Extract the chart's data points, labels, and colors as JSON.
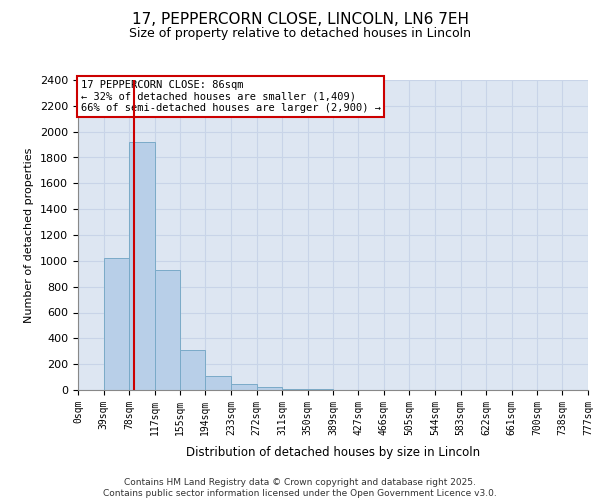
{
  "title_line1": "17, PEPPERCORN CLOSE, LINCOLN, LN6 7EH",
  "title_line2": "Size of property relative to detached houses in Lincoln",
  "xlabel": "Distribution of detached houses by size in Lincoln",
  "ylabel": "Number of detached properties",
  "bar_bins": [
    0,
    39,
    78,
    117,
    155,
    194,
    233,
    272,
    311,
    350,
    389,
    427,
    466,
    505,
    544,
    583,
    622,
    661,
    700,
    738,
    777
  ],
  "bar_heights": [
    0,
    1025,
    1920,
    930,
    310,
    105,
    45,
    25,
    10,
    5,
    3,
    2,
    1,
    1,
    1,
    0,
    0,
    0,
    0,
    0
  ],
  "bar_color": "#b8cfe8",
  "bar_edge_color": "#7aaac8",
  "grid_color": "#c8d4e8",
  "bg_color": "#dde6f2",
  "property_size": 86,
  "property_label": "17 PEPPERCORN CLOSE: 86sqm",
  "annotation_line1": "← 32% of detached houses are smaller (1,409)",
  "annotation_line2": "66% of semi-detached houses are larger (2,900) →",
  "red_line_color": "#cc0000",
  "annotation_box_color": "#ffffff",
  "annotation_box_edge": "#cc0000",
  "ylim": [
    0,
    2400
  ],
  "ytick_step": 200,
  "footnote_line1": "Contains HM Land Registry data © Crown copyright and database right 2025.",
  "footnote_line2": "Contains public sector information licensed under the Open Government Licence v3.0.",
  "tick_labels": [
    "0sqm",
    "39sqm",
    "78sqm",
    "117sqm",
    "155sqm",
    "194sqm",
    "233sqm",
    "272sqm",
    "311sqm",
    "350sqm",
    "389sqm",
    "427sqm",
    "466sqm",
    "505sqm",
    "544sqm",
    "583sqm",
    "622sqm",
    "661sqm",
    "700sqm",
    "738sqm",
    "777sqm"
  ]
}
